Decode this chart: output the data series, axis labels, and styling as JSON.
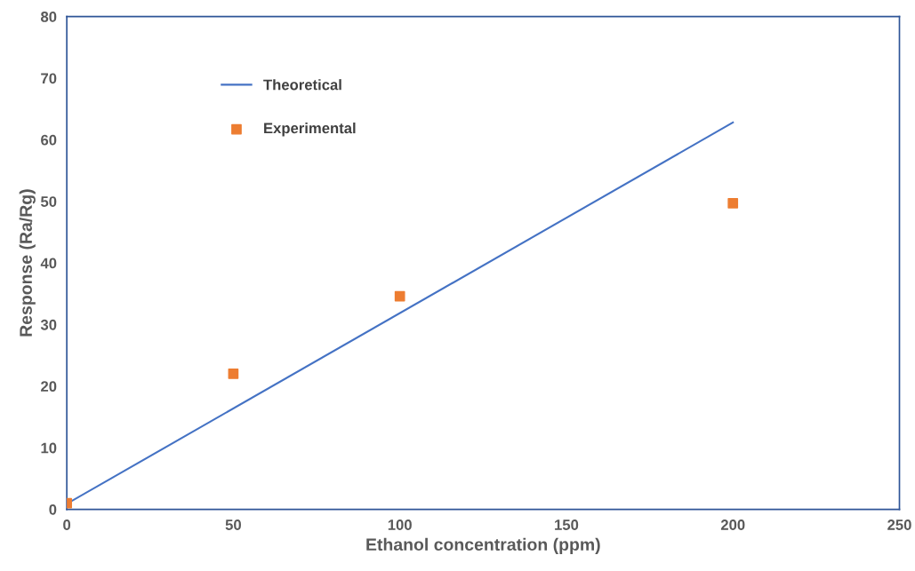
{
  "chart_data": {
    "type": "line",
    "xlabel": "Ethanol concentration (ppm)",
    "ylabel": "Response (Ra/Rg)",
    "xlim": [
      0,
      250
    ],
    "ylim": [
      0,
      80
    ],
    "xticks": [
      0,
      50,
      100,
      150,
      200,
      250
    ],
    "yticks": [
      0,
      10,
      20,
      30,
      40,
      50,
      60,
      70,
      80
    ],
    "grid": false,
    "legend": "top left",
    "series": [
      {
        "name": "Theoretical",
        "color": "#4472c4",
        "x": [
          0,
          200
        ],
        "values": [
          0.9,
          62.8
        ],
        "marker": "none",
        "line_style": "solid"
      },
      {
        "name": "Experimental",
        "type": "scatter",
        "color": "#ed7d31",
        "x": [
          0,
          50,
          100,
          200
        ],
        "values": [
          1.0,
          22.0,
          34.6,
          49.7
        ],
        "marker": "square"
      }
    ]
  }
}
